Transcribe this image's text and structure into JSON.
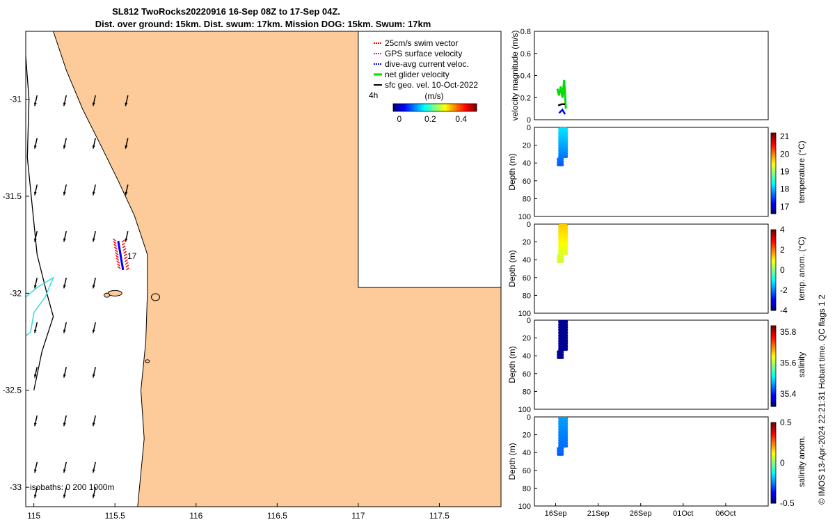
{
  "header": {
    "title_line1": "SL812 TwoRocks20220916 16-Sep 08Z to 17-Sep 04Z.",
    "title_line2": "Dist. over ground: 15km. Dist. swum: 17km. Mission DOG: 15km. Swum: 17km"
  },
  "colors": {
    "land": "#fccb99",
    "swim_vector": "#ff0000",
    "gps_velocity": "#ff00ff",
    "dive_avg_current": "#0000ff",
    "net_glider_velocity": "#00dd00",
    "sfc_geo_velocity": "#000000",
    "isobath_200": "#33dddd"
  },
  "chart_data": [
    {
      "id": "map",
      "type": "scatter",
      "xlim": [
        114.95,
        117.88
      ],
      "ylim": [
        -33.1,
        -30.65
      ],
      "x_ticks": [
        "115",
        "115.5",
        "116",
        "116.5",
        "117",
        "117.5"
      ],
      "x_tick_values": [
        115,
        115.5,
        116,
        116.5,
        117,
        117.5
      ],
      "y_ticks": [
        "-31",
        "-31.5",
        "-32",
        "-32.5",
        "-33"
      ],
      "y_tick_values": [
        -31,
        -31.5,
        -32,
        -32.5,
        -33
      ],
      "legend": [
        {
          "label": "25cm/s swim vector",
          "color": "#ff0000"
        },
        {
          "label": "GPS surface velocity",
          "color": "#ff00ff"
        },
        {
          "label": "dive-avg current veloc.",
          "color": "#0000ff"
        },
        {
          "label": "net glider velocity",
          "color": "#00dd00"
        },
        {
          "label": "sfc geo. vel. 10-Oct-2022",
          "color": "#000000"
        }
      ],
      "legend_placement": "top-right",
      "colorbar": {
        "label": "(m/s)",
        "ticks": [
          "0",
          "0.2",
          "0.4"
        ],
        "tick_values": [
          0,
          0.2,
          0.4
        ],
        "range": [
          -0.04,
          0.5
        ],
        "side_label": "4h"
      },
      "annotation_day": "17",
      "isobaths_text": "isobaths: 0   200  1000m",
      "glider_track": [
        [
          115.52,
          -31.73
        ],
        [
          115.53,
          -31.78
        ],
        [
          115.54,
          -31.83
        ],
        [
          115.55,
          -31.88
        ]
      ],
      "arrow_field_x": [
        115.02,
        115.2,
        115.38,
        115.58
      ],
      "arrow_field_y": [
        -30.98,
        -31.2,
        -31.44,
        -31.68,
        -31.92,
        -32.15,
        -32.38,
        -32.63,
        -32.87,
        -33.0
      ],
      "arrow_mean_vector": [
        -0.015,
        -0.055
      ]
    },
    {
      "id": "velocity",
      "type": "line",
      "ylabel": "velocity magnitude (m/s)",
      "ylim": [
        0,
        0.8
      ],
      "y_ticks": [
        "0",
        "0.2",
        "0.4",
        "0.6",
        "0.8"
      ],
      "y_tick_values": [
        0,
        0.2,
        0.4,
        0.6,
        0.8
      ],
      "xlim_days": [
        13.5,
        41.0
      ],
      "series": [
        {
          "color": "#00dd00",
          "x": [
            16.2,
            16.4,
            16.6,
            16.8,
            17.0,
            17.2
          ],
          "y": [
            0.28,
            0.22,
            0.3,
            0.2,
            0.36,
            0.1
          ]
        },
        {
          "color": "#0000ff",
          "x": [
            16.4,
            16.8,
            17.1
          ],
          "y": [
            0.06,
            0.09,
            0.05
          ]
        },
        {
          "color": "#000000",
          "x": [
            16.3,
            16.7,
            17.1
          ],
          "y": [
            0.13,
            0.14,
            0.14
          ]
        }
      ]
    },
    {
      "id": "temperature",
      "type": "scatter",
      "ylabel": "Depth (m)",
      "ylim": [
        0,
        100
      ],
      "y_ticks": [
        "0",
        "20",
        "40",
        "60",
        "80",
        "100"
      ],
      "y_tick_values": [
        0,
        20,
        40,
        60,
        80,
        100
      ],
      "colorbar": {
        "label": "temperature (°C)",
        "ticks": [
          "17",
          "18",
          "19",
          "20",
          "21"
        ],
        "tick_values": [
          17,
          18,
          19,
          20,
          21
        ],
        "range": [
          16.6,
          21.2
        ]
      },
      "max_depth": 40,
      "value_top": 18.2,
      "value_bottom": 17.6
    },
    {
      "id": "temp_anom",
      "type": "scatter",
      "ylabel": "Depth (m)",
      "ylim": [
        0,
        100
      ],
      "y_ticks": [
        "0",
        "20",
        "40",
        "60",
        "80",
        "100"
      ],
      "y_tick_values": [
        0,
        20,
        40,
        60,
        80,
        100
      ],
      "colorbar": {
        "label": "temp. anom. (°C)",
        "ticks": [
          "-4",
          "-2",
          "0",
          "2",
          "4"
        ],
        "tick_values": [
          -4,
          -2,
          0,
          2,
          4
        ],
        "range": [
          -4,
          4
        ]
      },
      "max_depth": 40,
      "value_top": 1.4,
      "value_bottom": 0.6
    },
    {
      "id": "salinity",
      "type": "scatter",
      "ylabel": "Depth (m)",
      "ylim": [
        0,
        100
      ],
      "y_ticks": [
        "0",
        "20",
        "40",
        "60",
        "80",
        "100"
      ],
      "y_tick_values": [
        0,
        20,
        40,
        60,
        80,
        100
      ],
      "colorbar": {
        "label": "salinity",
        "ticks": [
          "35.4",
          "35.6",
          "35.8"
        ],
        "tick_values": [
          35.4,
          35.6,
          35.8
        ],
        "range": [
          35.32,
          35.84
        ]
      },
      "max_depth": 40,
      "value_top": 35.33,
      "value_bottom": 35.33
    },
    {
      "id": "salinity_anom",
      "type": "scatter",
      "ylabel": "Depth (m)",
      "ylim": [
        0,
        100
      ],
      "y_ticks": [
        "0",
        "20",
        "40",
        "60",
        "80",
        "100"
      ],
      "y_tick_values": [
        0,
        20,
        40,
        60,
        80,
        100
      ],
      "colorbar": {
        "label": "salinity anom.",
        "ticks": [
          "-0.5",
          "0",
          "0.5"
        ],
        "tick_values": [
          -0.5,
          0,
          0.5
        ],
        "range": [
          -0.5,
          0.5
        ]
      },
      "max_depth": 40,
      "value_top": -0.22,
      "value_bottom": -0.28,
      "x_ticks": [
        "16Sep",
        "21Sep",
        "26Sep",
        "01Oct",
        "06Oct"
      ],
      "x_tick_days": [
        16,
        21,
        26,
        31,
        36
      ]
    }
  ],
  "footer": {
    "copyright": "© IMOS 13-Apr-2024 22:21:31 Hobart time. QC flags 1  2"
  }
}
